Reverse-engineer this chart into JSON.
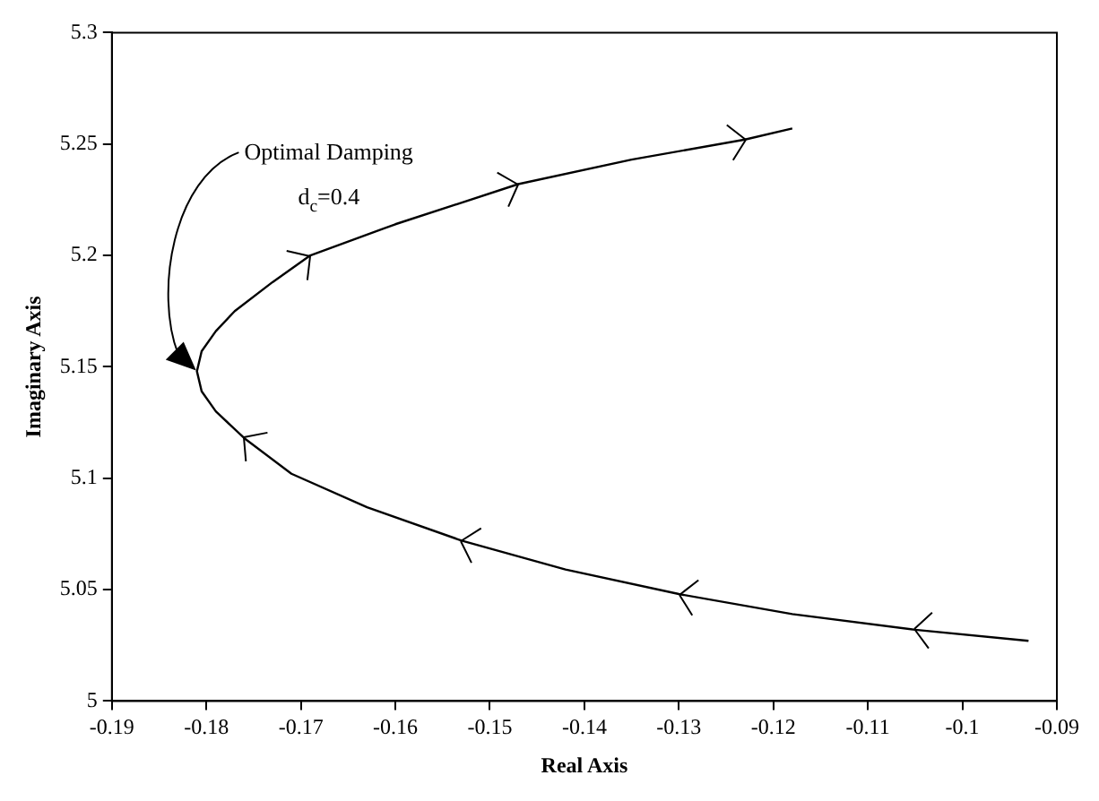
{
  "chart_data": {
    "type": "line",
    "xlabel": "Real Axis",
    "ylabel": "Imaginary Axis",
    "xlim": [
      -0.19,
      -0.09
    ],
    "xticks": [
      -0.19,
      -0.18,
      -0.17,
      -0.16,
      -0.15,
      -0.14,
      -0.13,
      -0.12,
      -0.11,
      {
        "value": -0.1,
        "label": "-0.1"
      },
      -0.09
    ],
    "ylim": [
      5,
      5.3
    ],
    "yticks": [
      5,
      5.05,
      {
        "value": 5.1,
        "label": "5.1"
      },
      5.15,
      {
        "value": 5.2,
        "label": "5.2"
      },
      5.25,
      {
        "value": 5.3,
        "label": "5.3"
      }
    ],
    "grid": false,
    "legend": false,
    "marker": "none",
    "line_style": "solid",
    "series": [
      {
        "color": "#000000",
        "x": [
          -0.093,
          -0.105,
          -0.118,
          -0.13,
          -0.142,
          -0.153,
          -0.163,
          -0.171,
          -0.176,
          -0.179,
          -0.1805,
          -0.181,
          -0.1805,
          -0.179,
          -0.177,
          -0.173,
          -0.169,
          -0.16,
          -0.147,
          -0.135,
          -0.123,
          -0.118
        ],
        "values": [
          5.027,
          5.032,
          5.039,
          5.048,
          5.059,
          5.072,
          5.087,
          5.102,
          5.118,
          5.13,
          5.139,
          5.148,
          5.157,
          5.166,
          5.175,
          5.188,
          5.2,
          5.214,
          5.232,
          5.243,
          5.252,
          5.257
        ]
      }
    ],
    "annotations": [
      {
        "text": "Optimal Damping",
        "x": -0.1826,
        "y": 5.154
      },
      "d$_{c}$=0.4"
    ]
  }
}
